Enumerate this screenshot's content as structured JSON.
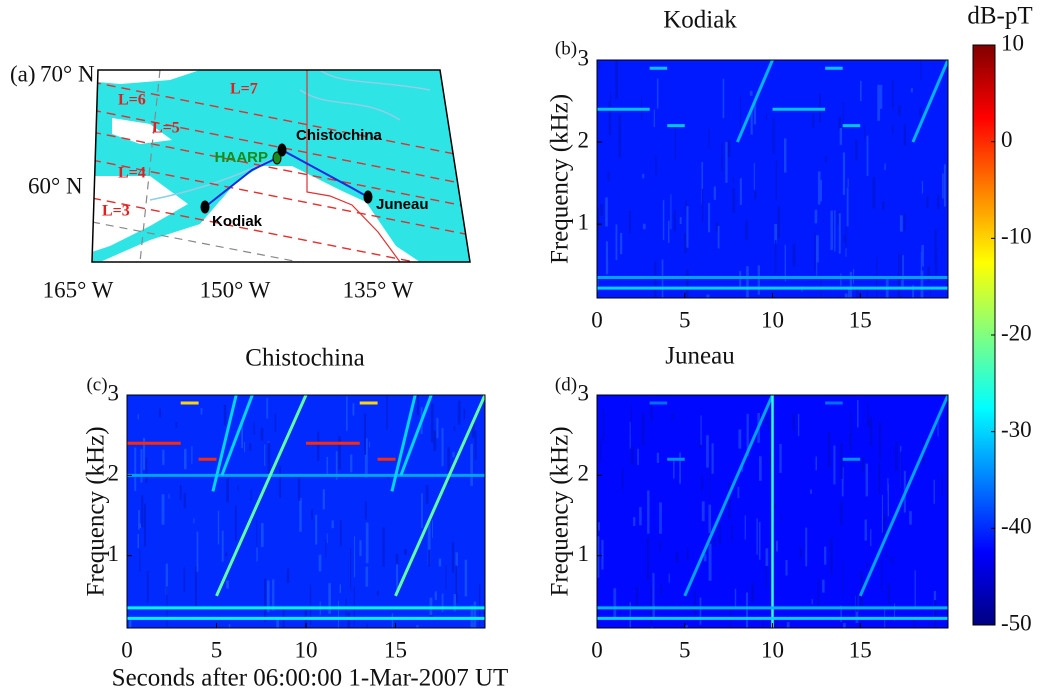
{
  "chart_data": [
    {
      "type": "map",
      "panel": "(a)",
      "lat_labels": [
        "70° N",
        "60° N"
      ],
      "lon_labels": [
        "165° W",
        "150° W",
        "135° W"
      ],
      "stations": [
        {
          "name": "Kodiak",
          "color": "#000000"
        },
        {
          "name": "HAARP",
          "color": "#1a8a1a"
        },
        {
          "name": "Chistochina",
          "color": "#000000"
        },
        {
          "name": "Juneau",
          "color": "#000000"
        }
      ],
      "l_shells": [
        "L=7",
        "L=6",
        "L=5",
        "L=4",
        "L=3"
      ]
    },
    {
      "type": "spectrogram",
      "panel": "(b)",
      "title": "Kodiak",
      "ylabel": "Frequency (kHz)",
      "xlim": [
        0,
        20
      ],
      "xticks": [
        0,
        5,
        10,
        15
      ],
      "ylim": [
        0.1,
        3
      ],
      "yticks": [
        1,
        2,
        3
      ],
      "background_level": -41,
      "features": [
        {
          "t": [
            0,
            3
          ],
          "f": [
            2.4,
            2.4
          ],
          "level": -31
        },
        {
          "t": [
            3,
            4
          ],
          "f": [
            2.9,
            2.9
          ],
          "level": -31
        },
        {
          "t": [
            4,
            5
          ],
          "f": [
            2.2,
            2.2
          ],
          "level": -31
        },
        {
          "t": [
            10,
            13
          ],
          "f": [
            2.4,
            2.4
          ],
          "level": -31
        },
        {
          "t": [
            13,
            14
          ],
          "f": [
            2.9,
            2.9
          ],
          "level": -31
        },
        {
          "t": [
            14,
            15
          ],
          "f": [
            2.2,
            2.2
          ],
          "level": -31
        },
        {
          "t": [
            8,
            10
          ],
          "f": [
            2.0,
            3
          ],
          "level": -32
        },
        {
          "t": [
            18,
            20
          ],
          "f": [
            2.0,
            3
          ],
          "level": -32
        },
        {
          "t": [
            0,
            20
          ],
          "f": [
            0.22,
            0.22
          ],
          "level": -30
        },
        {
          "t": [
            0,
            20
          ],
          "f": [
            0.35,
            0.35
          ],
          "level": -33
        }
      ]
    },
    {
      "type": "spectrogram",
      "panel": "(c)",
      "title": "Chistochina",
      "ylabel": "Frequency (kHz)",
      "xlim": [
        0,
        20
      ],
      "xticks": [
        0,
        5,
        10,
        15
      ],
      "ylim": [
        0.1,
        3
      ],
      "yticks": [
        1,
        2,
        3
      ],
      "background_level": -40,
      "features": [
        {
          "t": [
            0,
            20
          ],
          "f": [
            2.0,
            2.0
          ],
          "level": -33
        },
        {
          "t": [
            0,
            3
          ],
          "f": [
            2.4,
            2.4
          ],
          "level": 0
        },
        {
          "t": [
            3,
            4
          ],
          "f": [
            2.9,
            2.9
          ],
          "level": -10
        },
        {
          "t": [
            4,
            5
          ],
          "f": [
            2.2,
            2.2
          ],
          "level": 0
        },
        {
          "t": [
            10,
            13
          ],
          "f": [
            2.4,
            2.4
          ],
          "level": 0
        },
        {
          "t": [
            13,
            14
          ],
          "f": [
            2.9,
            2.9
          ],
          "level": -10
        },
        {
          "t": [
            14,
            15
          ],
          "f": [
            2.2,
            2.2
          ],
          "level": 0
        },
        {
          "t": [
            4.8,
            6.1
          ],
          "f": [
            1.8,
            3
          ],
          "level": -30
        },
        {
          "t": [
            5.3,
            7
          ],
          "f": [
            2.0,
            3
          ],
          "level": -30
        },
        {
          "t": [
            14.8,
            16.1
          ],
          "f": [
            1.8,
            3
          ],
          "level": -30
        },
        {
          "t": [
            15.3,
            17
          ],
          "f": [
            2.0,
            3
          ],
          "level": -30
        },
        {
          "t": [
            5,
            10
          ],
          "f": [
            0.5,
            3
          ],
          "level": -22
        },
        {
          "t": [
            15,
            20
          ],
          "f": [
            0.5,
            3
          ],
          "level": -22
        },
        {
          "t": [
            0,
            20
          ],
          "f": [
            0.22,
            0.22
          ],
          "level": -28
        },
        {
          "t": [
            0,
            20
          ],
          "f": [
            0.35,
            0.35
          ],
          "level": -28
        }
      ]
    },
    {
      "type": "spectrogram",
      "panel": "(d)",
      "title": "Juneau",
      "ylabel": "Frequency (kHz)",
      "xlim": [
        0,
        20
      ],
      "xticks": [
        0,
        5,
        10,
        15
      ],
      "ylim": [
        0.1,
        3
      ],
      "yticks": [
        1,
        2,
        3
      ],
      "background_level": -42,
      "features": [
        {
          "t": [
            3,
            4
          ],
          "f": [
            2.9,
            2.9
          ],
          "level": -36
        },
        {
          "t": [
            4,
            5
          ],
          "f": [
            2.2,
            2.2
          ],
          "level": -34
        },
        {
          "t": [
            13,
            14
          ],
          "f": [
            2.9,
            2.9
          ],
          "level": -36
        },
        {
          "t": [
            14,
            15
          ],
          "f": [
            2.2,
            2.2
          ],
          "level": -34
        },
        {
          "t": [
            5,
            10
          ],
          "f": [
            0.5,
            3
          ],
          "level": -33
        },
        {
          "t": [
            15,
            20
          ],
          "f": [
            0.5,
            3
          ],
          "level": -33
        },
        {
          "t": [
            10,
            10
          ],
          "f": [
            0.1,
            3
          ],
          "level": -25
        },
        {
          "t": [
            0,
            20
          ],
          "f": [
            0.22,
            0.22
          ],
          "level": -30
        },
        {
          "t": [
            0,
            20
          ],
          "f": [
            0.35,
            0.35
          ],
          "level": -32
        }
      ]
    },
    {
      "type": "colorbar",
      "title": "dB-pT",
      "clim": [
        -50,
        10
      ],
      "ticks": [
        10,
        0,
        -10,
        -20,
        -30,
        -40,
        -50
      ]
    }
  ],
  "xlabel": "Seconds after 06:00:00 1-Mar-2007 UT"
}
